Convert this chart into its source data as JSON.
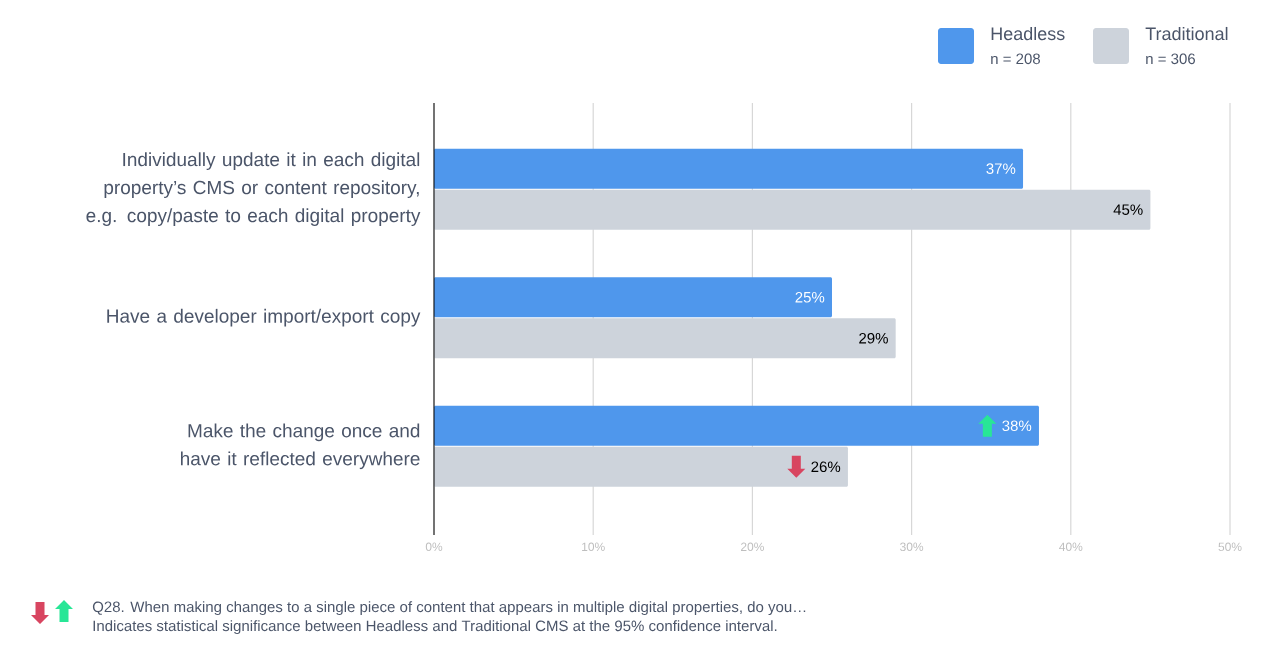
{
  "chart_data": {
    "type": "bar",
    "orientation": "horizontal",
    "categories": [
      "Individually update it in each digital property’s CMS or content repository, e.g. copy/paste to each digital property",
      "Have a developer import/export copy",
      "Make the change once and have it reflected everywhere"
    ],
    "series": [
      {
        "name": "Headless",
        "color": "#4f97ec",
        "values": [
          37,
          25,
          38
        ],
        "value_labels": [
          "37%",
          "25%",
          "38%"
        ]
      },
      {
        "name": "Traditional",
        "color": "#cdd3db",
        "values": [
          45,
          29,
          26
        ],
        "value_labels": [
          "45%",
          "29%",
          "26%"
        ]
      }
    ],
    "xlim": [
      0,
      50
    ],
    "xticks": [
      {
        "value": 0,
        "label": "0%"
      },
      {
        "value": 10,
        "label": "10%"
      },
      {
        "value": 20,
        "label": "20%"
      },
      {
        "value": 30,
        "label": "30%"
      },
      {
        "value": 40,
        "label": "40%"
      },
      {
        "value": 50,
        "label": "50%"
      }
    ],
    "grid": "x",
    "legend": "top right",
    "annotations": [
      "n = 208",
      "n = 306",
      "Q28. When making changes to a single piece of content that appears in multiple digital properties, do you…",
      "Indicates statistical significance between Headless and Traditional CMS at the 95% confidence interval."
    ]
  }
}
